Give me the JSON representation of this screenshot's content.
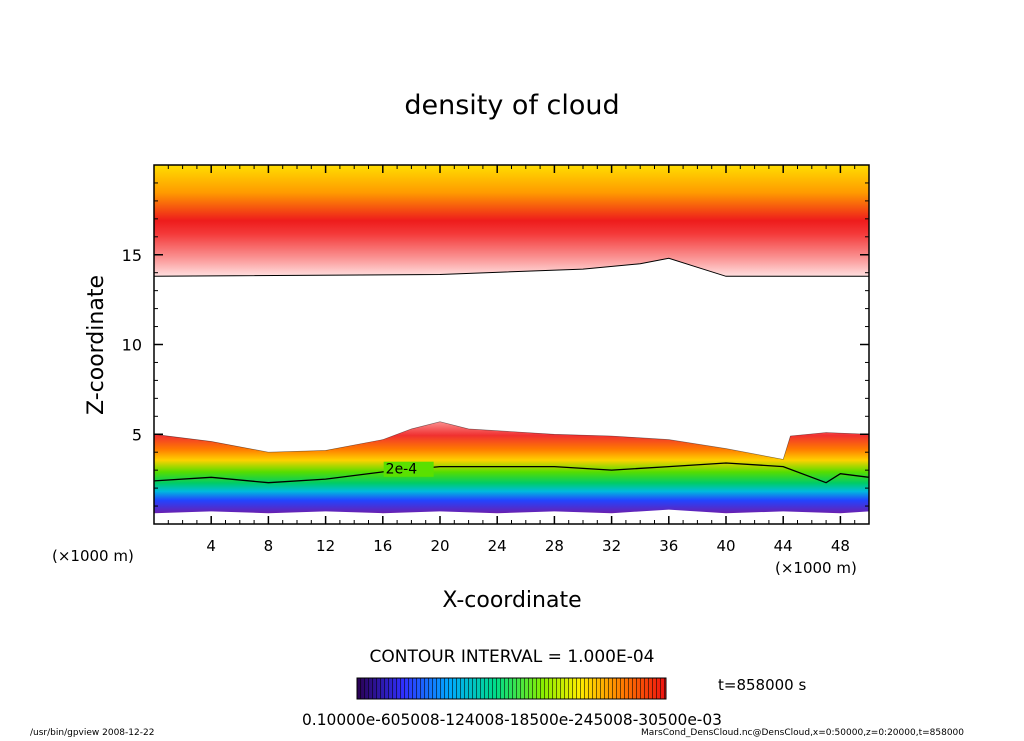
{
  "chart_data": {
    "type": "heatmap",
    "title": "density of cloud",
    "xlabel": "X-coordinate",
    "ylabel": "Z-coordinate",
    "x_units_left": "(×1000 m)",
    "x_units_right": "(×1000 m)",
    "xlim": [
      0,
      50
    ],
    "ylim": [
      0,
      20
    ],
    "xticks": [
      4,
      8,
      12,
      16,
      20,
      24,
      28,
      32,
      36,
      40,
      44,
      48
    ],
    "yticks": [
      5,
      10,
      15
    ],
    "contour_label": "2e-4",
    "contour_interval_text": "CONTOUR INTERVAL = 1.000E-04",
    "time_text": "t=858000 s",
    "colorbar_labels_text": "0.10000e-605008-124008-18500e-245008-30500e-03",
    "colorbar_range": [
      0.0001,
      0.0003
    ],
    "upper_cloud": {
      "top": 20,
      "core": 15.8,
      "base": [
        [
          0,
          13.8
        ],
        [
          20,
          13.9
        ],
        [
          30,
          14.2
        ],
        [
          34,
          14.5
        ],
        [
          36,
          14.8
        ],
        [
          38,
          14.3
        ],
        [
          40,
          13.8
        ],
        [
          50,
          13.8
        ]
      ]
    },
    "lower_cloud": {
      "top": [
        [
          0,
          5
        ],
        [
          4,
          4.6
        ],
        [
          8,
          4.0
        ],
        [
          12,
          4.1
        ],
        [
          16,
          4.7
        ],
        [
          18,
          5.3
        ],
        [
          20,
          5.7
        ],
        [
          22,
          5.3
        ],
        [
          24,
          5.2
        ],
        [
          28,
          5.0
        ],
        [
          32,
          4.9
        ],
        [
          36,
          4.7
        ],
        [
          40,
          4.2
        ],
        [
          44,
          3.6
        ],
        [
          44.5,
          4.9
        ],
        [
          47,
          5.1
        ],
        [
          50,
          5.0
        ]
      ],
      "contour_2e4": [
        [
          0,
          2.4
        ],
        [
          4,
          2.6
        ],
        [
          8,
          2.3
        ],
        [
          12,
          2.5
        ],
        [
          16,
          2.9
        ],
        [
          20,
          3.2
        ],
        [
          24,
          3.2
        ],
        [
          28,
          3.2
        ],
        [
          32,
          3.0
        ],
        [
          36,
          3.2
        ],
        [
          40,
          3.4
        ],
        [
          44,
          3.2
        ],
        [
          47,
          2.3
        ],
        [
          48,
          2.8
        ],
        [
          50,
          2.6
        ]
      ],
      "bottom": [
        [
          0,
          0.6
        ],
        [
          4,
          0.7
        ],
        [
          8,
          0.6
        ],
        [
          12,
          0.7
        ],
        [
          16,
          0.6
        ],
        [
          20,
          0.7
        ],
        [
          24,
          0.6
        ],
        [
          28,
          0.7
        ],
        [
          32,
          0.6
        ],
        [
          36,
          0.8
        ],
        [
          40,
          0.6
        ],
        [
          44,
          0.7
        ],
        [
          48,
          0.6
        ],
        [
          50,
          0.7
        ]
      ]
    },
    "legend_placement": "bottom-center",
    "grid": false
  },
  "footer": {
    "left": "/usr/bin/gpview   2008-12-22",
    "right": "MarsCond_DensCloud.nc@DensCloud,x=0:50000,z=0:20000,t=858000"
  }
}
